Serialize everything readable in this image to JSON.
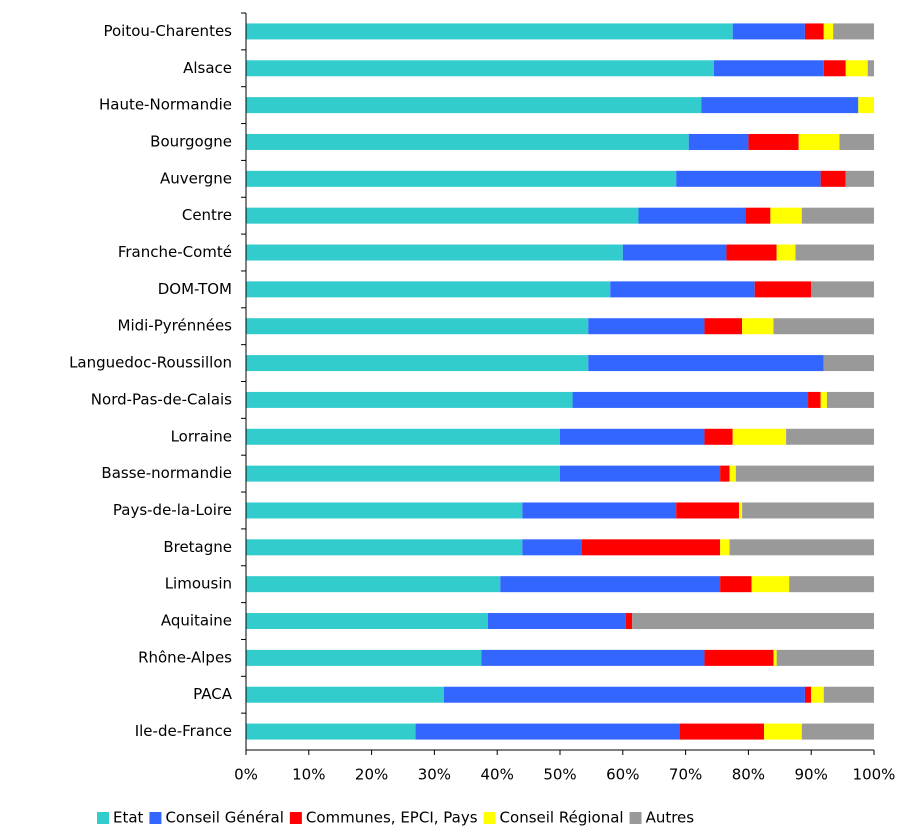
{
  "chart_data": {
    "type": "stacked_bar_horizontal",
    "categories": [
      "Poitou-Charentes",
      "Alsace",
      "Haute-Normandie",
      "Bourgogne",
      "Auvergne",
      "Centre",
      "Franche-Comté",
      "DOM-TOM",
      "Midi-Pyrénnées",
      "Languedoc-Roussillon",
      "Nord-Pas-de-Calais",
      "Lorraine",
      "Basse-normandie",
      "Pays-de-la-Loire",
      "Bretagne",
      "Limousin",
      "Aquitaine",
      "Rhône-Alpes",
      "PACA",
      "Ile-de-France"
    ],
    "series": [
      {
        "name": "Etat",
        "color": "#33cccc",
        "values": [
          77.5,
          74.5,
          72.5,
          70.5,
          68.5,
          62.5,
          60,
          58,
          54.5,
          54.5,
          52,
          50,
          50,
          44,
          44,
          40.5,
          38.5,
          37.5,
          31.5,
          27
        ]
      },
      {
        "name": "Conseil Général",
        "color": "#3366ff",
        "values": [
          11.5,
          17.5,
          25,
          9.5,
          23,
          17,
          16.5,
          23,
          18.5,
          37.5,
          37.5,
          23,
          25.5,
          24.5,
          9.5,
          35,
          22,
          35.5,
          57.5,
          42
        ]
      },
      {
        "name": "Communes, EPCI, Pays",
        "color": "#ff0000",
        "values": [
          3,
          3.5,
          0,
          8,
          4,
          4,
          8,
          9,
          6,
          0,
          2,
          4.5,
          1.5,
          10,
          22,
          5,
          1,
          11,
          1,
          13.5
        ]
      },
      {
        "name": "Conseil Régional",
        "color": "#ffff00",
        "values": [
          1.5,
          3.5,
          2.5,
          6.5,
          0,
          5,
          3,
          0,
          5,
          0,
          1,
          8.5,
          1,
          0.5,
          1.5,
          6,
          0,
          0.5,
          2,
          6
        ]
      },
      {
        "name": "Autres",
        "color": "#999999",
        "values": [
          6.5,
          1,
          0,
          5.5,
          4.5,
          11.5,
          12.5,
          10,
          16,
          8,
          7.5,
          14,
          22,
          21,
          23,
          13.5,
          38.5,
          15.5,
          8,
          11.5
        ]
      }
    ],
    "xlim": [
      0,
      100
    ],
    "xticks": [
      {
        "value": 0,
        "label": "0%"
      },
      {
        "value": 10,
        "label": "10%"
      },
      {
        "value": 20,
        "label": "20%"
      },
      {
        "value": 30,
        "label": "30%"
      },
      {
        "value": 40,
        "label": "40%"
      },
      {
        "value": 50,
        "label": "50%"
      },
      {
        "value": 60,
        "label": "60%"
      },
      {
        "value": 70,
        "label": "70%"
      },
      {
        "value": 80,
        "label": "80%"
      },
      {
        "value": 90,
        "label": "90%"
      },
      {
        "value": 100,
        "label": "100%"
      }
    ],
    "grid": false,
    "legend": "bottom"
  }
}
